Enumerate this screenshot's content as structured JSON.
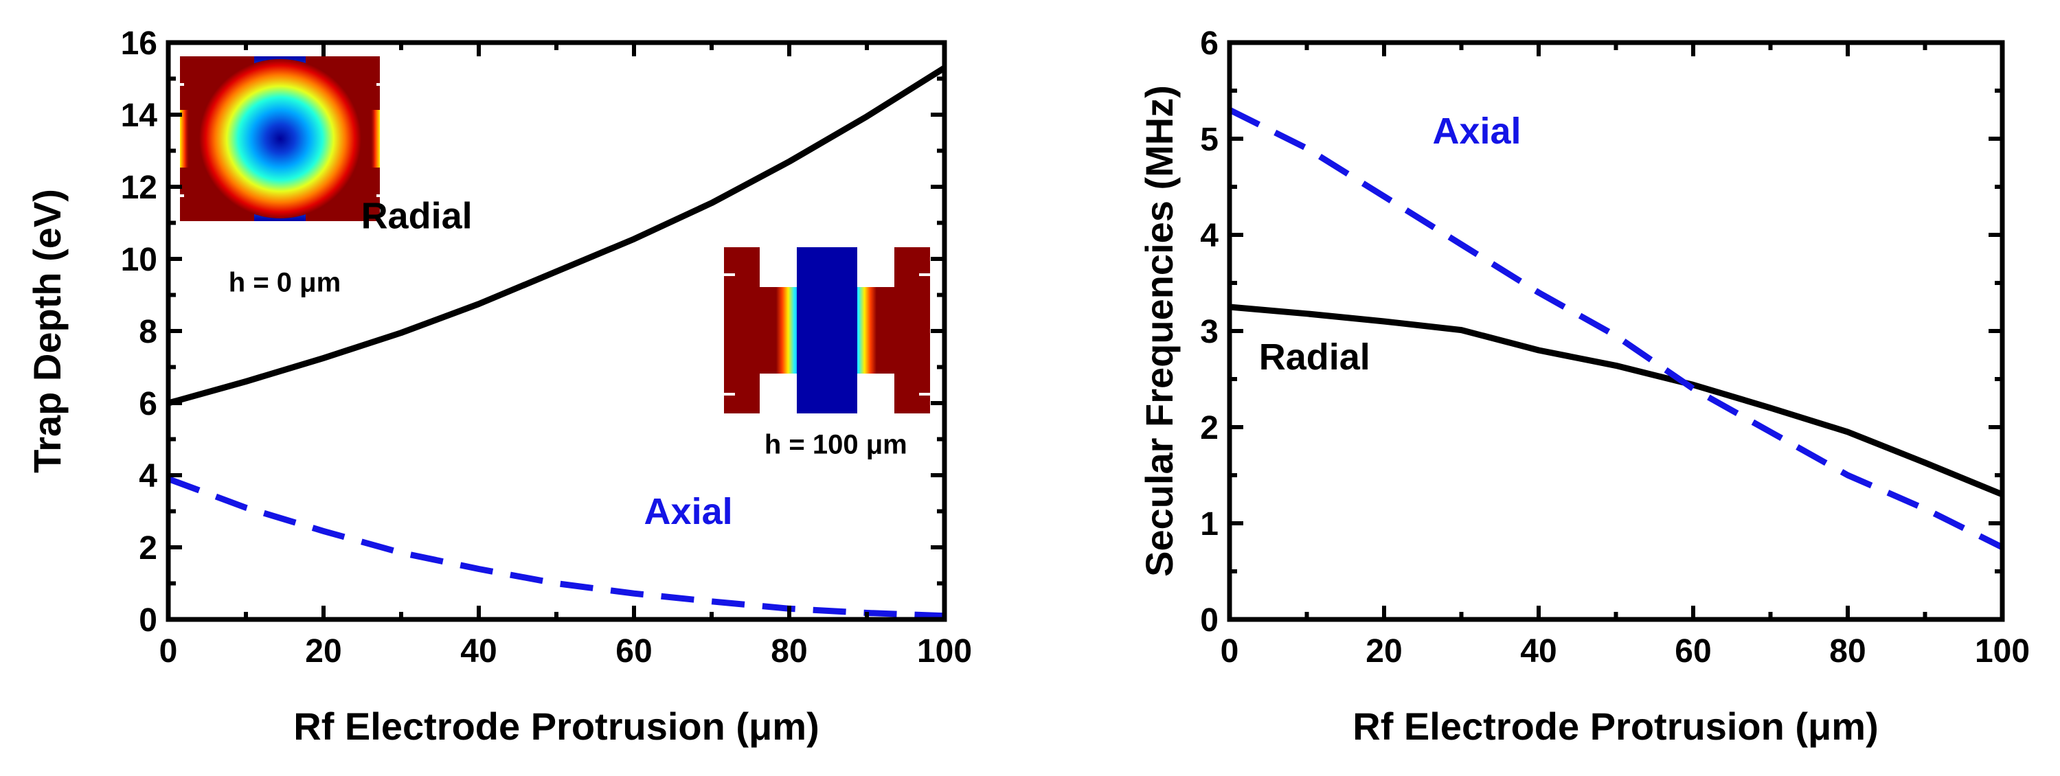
{
  "chart_data": [
    {
      "type": "line",
      "title": "",
      "xlabel": "Rf Electrode Protrusion (μm)",
      "ylabel": "Trap Depth (eV)",
      "xlim": [
        0,
        100
      ],
      "ylim": [
        0,
        16
      ],
      "xticks": [
        "0",
        "20",
        "40",
        "60",
        "80",
        "100"
      ],
      "yticks": [
        "0",
        "2",
        "4",
        "6",
        "8",
        "10",
        "12",
        "14",
        "16"
      ],
      "x": [
        0,
        10,
        20,
        30,
        40,
        50,
        60,
        70,
        80,
        90,
        100
      ],
      "series": [
        {
          "name": "Radial",
          "color": "#000000",
          "dash": "solid",
          "values": [
            6.0,
            6.6,
            7.25,
            7.95,
            8.75,
            9.65,
            10.55,
            11.55,
            12.7,
            13.95,
            15.3
          ]
        },
        {
          "name": "Axial",
          "color": "#1414e6",
          "dash": "dashed",
          "values": [
            3.9,
            3.1,
            2.45,
            1.85,
            1.4,
            1.0,
            0.72,
            0.5,
            0.3,
            0.18,
            0.1
          ]
        }
      ],
      "annotations": [
        {
          "label": "Radial",
          "color": "#000000",
          "x": 32,
          "y": 10.85
        },
        {
          "label": "Axial",
          "color": "#1414e6",
          "x": 67,
          "y": 2.65
        },
        {
          "label": "h = 0 μm",
          "color": "#000000",
          "x": 15,
          "y": 9.1
        },
        {
          "label": "h = 100 μm",
          "color": "#000000",
          "x": 86,
          "y": 4.6
        }
      ],
      "insets": [
        {
          "label": "h = 0 μm",
          "colormap": "jet"
        },
        {
          "label": "h = 100 μm",
          "colormap": "jet"
        }
      ],
      "grid": false,
      "legend": "none"
    },
    {
      "type": "line",
      "title": "",
      "xlabel": "Rf Electrode Protrusion (μm)",
      "ylabel": "Secular Frequencies (MHz)",
      "xlim": [
        0,
        100
      ],
      "ylim": [
        0,
        6
      ],
      "xticks": [
        "0",
        "20",
        "40",
        "60",
        "80",
        "100"
      ],
      "yticks": [
        "0",
        "1",
        "2",
        "3",
        "4",
        "5",
        "6"
      ],
      "x": [
        0,
        10,
        20,
        30,
        40,
        50,
        60,
        70,
        80,
        90,
        100
      ],
      "series": [
        {
          "name": "Radial",
          "color": "#000000",
          "dash": "solid",
          "values": [
            3.25,
            3.18,
            3.1,
            3.01,
            2.8,
            2.64,
            2.44,
            2.2,
            1.95,
            1.63,
            1.3
          ]
        },
        {
          "name": "Axial",
          "color": "#1414e6",
          "dash": "dashed",
          "values": [
            5.3,
            4.9,
            4.4,
            3.9,
            3.4,
            2.95,
            2.4,
            1.95,
            1.5,
            1.15,
            0.75
          ]
        }
      ],
      "annotations": [
        {
          "label": "Axial",
          "color": "#1414e6",
          "x": 32,
          "y": 4.95
        },
        {
          "label": "Radial",
          "color": "#000000",
          "x": 11,
          "y": 2.6
        }
      ],
      "grid": false,
      "legend": "none"
    }
  ]
}
